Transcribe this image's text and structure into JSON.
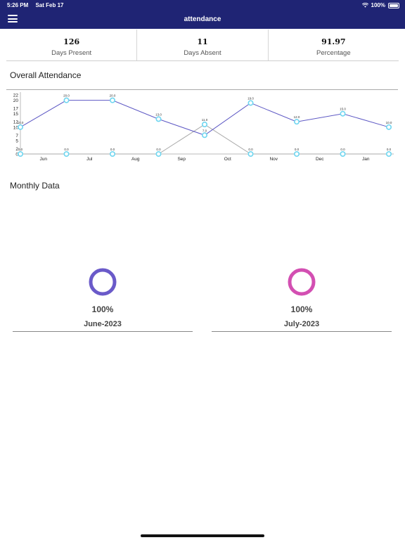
{
  "status_bar": {
    "time": "5:26 PM",
    "date": "Sat Feb 17",
    "battery": "100%"
  },
  "header": {
    "title": "attendance"
  },
  "stats": [
    {
      "value": "126",
      "label": "Days Present"
    },
    {
      "value": "11",
      "label": "Days Absent"
    },
    {
      "value": "91.97",
      "label": "Percentage"
    }
  ],
  "overall": {
    "title": "Overall Attendance"
  },
  "chart_data": {
    "type": "line",
    "title": "",
    "xlabel": "",
    "ylabel": "",
    "x_ticks": [
      "Jun",
      "Jul",
      "Aug",
      "Sep",
      "Oct",
      "Nov",
      "Dec",
      "Jan"
    ],
    "y_ticks": [
      0,
      2,
      5,
      7,
      10,
      12,
      15,
      17,
      20,
      22
    ],
    "ylim": [
      0,
      22
    ],
    "series": [
      {
        "color": "#5d58c4",
        "values": [
          10,
          20,
          20,
          13,
          7,
          19,
          12,
          15,
          10
        ],
        "labels": [
          "10.0",
          "20.0",
          "20.0",
          "13.0",
          "7.0",
          "19.0",
          "12.0",
          "15.0",
          "10.0"
        ]
      },
      {
        "color": "#a8a8a8",
        "values": [
          0,
          0,
          0,
          0,
          11,
          0,
          0,
          0,
          0
        ],
        "labels": [
          "0.0",
          "0.0",
          "0.0",
          "0.0",
          "11.0",
          "0.0",
          "0.0",
          "0.0",
          "0.0"
        ]
      }
    ],
    "grid": false
  },
  "monthly": {
    "title": "Monthly Data",
    "cards": [
      {
        "percent": "100%",
        "month": "June-2023",
        "color": "#6a5ac9"
      },
      {
        "percent": "100%",
        "month": "July-2023",
        "color": "#d34fb2"
      }
    ]
  }
}
